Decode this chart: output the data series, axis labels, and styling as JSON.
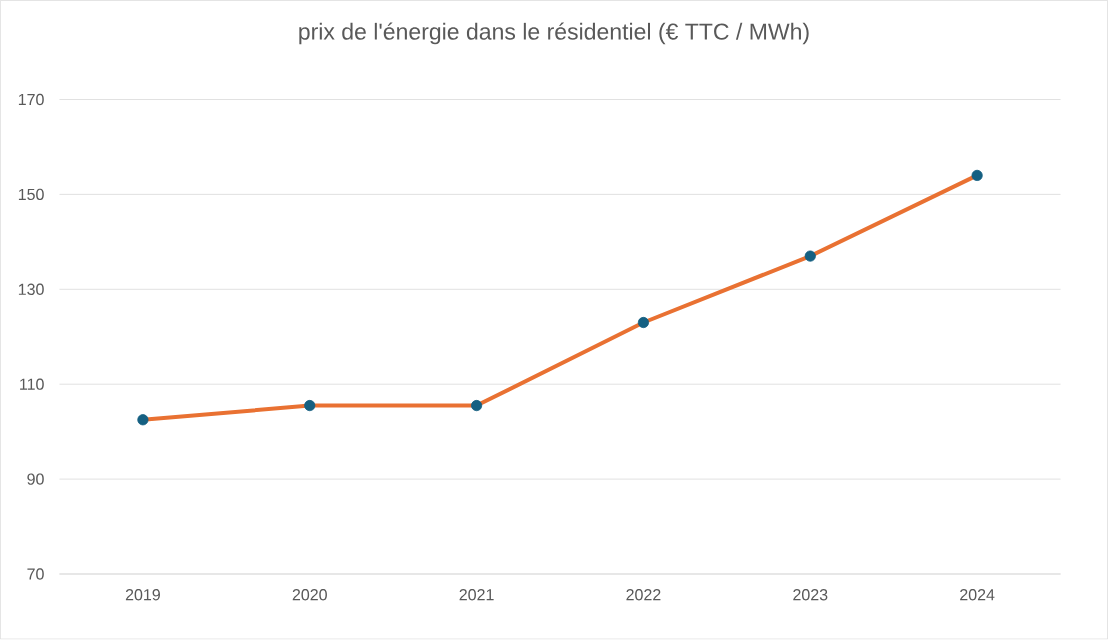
{
  "chart_data": {
    "type": "line",
    "title": "prix de l'énergie dans le résidentiel (€ TTC / MWh)",
    "categories": [
      "2019",
      "2020",
      "2021",
      "2022",
      "2023",
      "2024"
    ],
    "series": [
      {
        "color": "#e97132",
        "colors": [
          "#156082",
          "#156082",
          "#156082",
          "#156082",
          "#156082",
          "#156082"
        ],
        "values": [
          102.5,
          105.5,
          105.5,
          123,
          137,
          154
        ]
      }
    ],
    "ylim": [
      70,
      170
    ],
    "yticks": [
      70,
      90,
      110,
      130,
      150,
      170
    ],
    "grid": "y",
    "marker": "circle",
    "line_style": "solid"
  }
}
